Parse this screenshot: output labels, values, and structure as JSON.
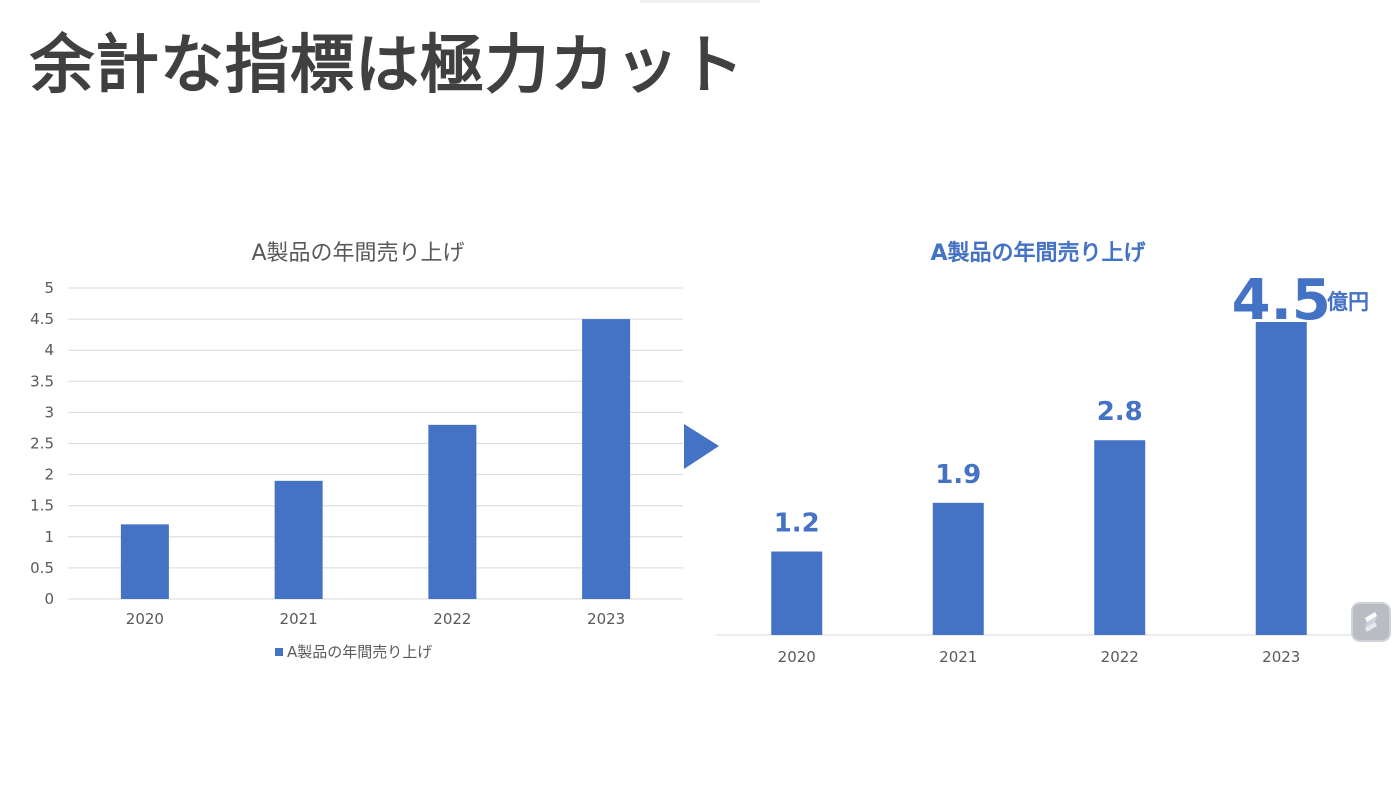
{
  "slide": {
    "title": "余計な指標は極力カット"
  },
  "colors": {
    "bar": "#4472C4",
    "title_text": "#404040",
    "axis_text": "#595959",
    "grid": "#d9d9d9"
  },
  "chart_data": [
    {
      "type": "bar",
      "title": "A製品の年間売り上げ",
      "categories": [
        "2020",
        "2021",
        "2022",
        "2023"
      ],
      "values": [
        1.2,
        1.9,
        2.8,
        4.5
      ],
      "ylim": [
        0,
        5
      ],
      "yticks": [
        "0",
        "0.5",
        "1",
        "1.5",
        "2",
        "2.5",
        "3",
        "3.5",
        "4",
        "4.5",
        "5"
      ],
      "grid": true,
      "legend": {
        "position": "bottom",
        "label": "A製品の年間売り上げ"
      },
      "xlabel": "",
      "ylabel": ""
    },
    {
      "type": "bar",
      "title": "A製品の年間売り上げ",
      "categories": [
        "2020",
        "2021",
        "2022",
        "2023"
      ],
      "values": [
        1.2,
        1.9,
        2.8,
        4.5
      ],
      "data_labels": [
        "1.2",
        "1.9",
        "2.8",
        "4.5"
      ],
      "unit_label": "億円",
      "grid": false,
      "xlabel": "",
      "ylabel": ""
    }
  ],
  "icons": {
    "arrow": "right-triangle-arrow-icon",
    "badge": "ai-assistant-icon"
  }
}
